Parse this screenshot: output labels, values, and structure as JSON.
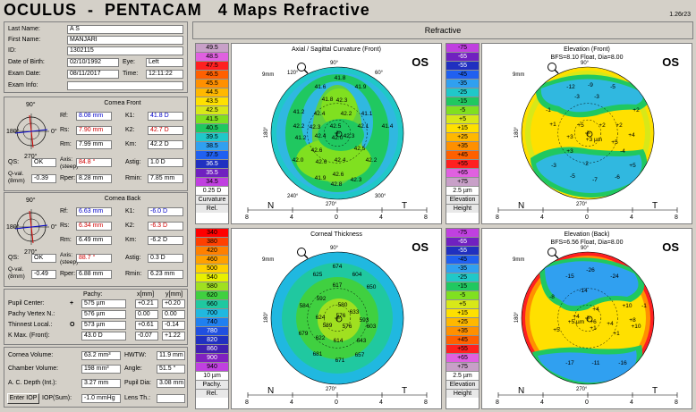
{
  "header": {
    "app": "OCULUS",
    "dash": "-",
    "product": "PENTACAM",
    "view": "4 Maps Refractive",
    "version": "1.26r23"
  },
  "mode_tab": "Refractive",
  "patient": {
    "last_name_label": "Last Name:",
    "last_name": "A S",
    "first_name_label": "First Name:",
    "first_name": "MANJARI",
    "id_label": "ID:",
    "id": "1302115",
    "dob_label": "Date of Birth:",
    "dob": "02/10/1992",
    "eye_label": "Eye:",
    "eye": "Left",
    "exam_date_label": "Exam Date:",
    "exam_date": "08/11/2017",
    "time_label": "Time:",
    "time": "12:11:22",
    "exam_info_label": "Exam Info:",
    "exam_info": ""
  },
  "front": {
    "title": "Cornea Front",
    "axis_top": "90°",
    "axis_left": "180°",
    "axis_right": "0°",
    "axis_bottom": "270°",
    "rf_label": "Rf:",
    "rf": "8.08 mm",
    "k1_label": "K1:",
    "k1": "41.8 D",
    "rs_label": "Rs:",
    "rs": "7.90 mm",
    "k2_label": "K2:",
    "k2": "42.7 D",
    "rm_label": "Rm:",
    "rm": "7.99 mm",
    "km_label": "Km:",
    "km": "42.2 D",
    "qs_label": "QS:",
    "qs": "OK",
    "axis_label": "Axis:\n(steep)",
    "axis": "84.8 °",
    "astig_label": "Astig:",
    "astig": "1.0 D",
    "qval_label": "Q-val.\n(8mm)",
    "qval": "-0.39",
    "rper_label": "Rper:",
    "rper": "8.28 mm",
    "rmin_label": "Rmin:",
    "rmin": "7.85 mm"
  },
  "back": {
    "title": "Cornea Back",
    "axis_top": "90°",
    "axis_left": "180°",
    "axis_right": "0°",
    "axis_bottom": "270°",
    "rf_label": "Rf:",
    "rf": "6.63 mm",
    "k1_label": "K1:",
    "k1": "-6.0 D",
    "rs_label": "Rs:",
    "rs": "6.34 mm",
    "k2_label": "K2:",
    "k2": "-6.3 D",
    "rm_label": "Rm:",
    "rm": "6.49 mm",
    "km_label": "Km:",
    "km": "-6.2 D",
    "qs_label": "QS:",
    "qs": "OK",
    "axis_label": "Axis:\n(steep)",
    "axis": "88.7 °",
    "astig_label": "Astig:",
    "astig": "0.3 D",
    "qval_label": "Q-val.\n(8mm)",
    "qval": "-0.49",
    "rper_label": "Rper:",
    "rper": "6.88 mm",
    "rmin_label": "Rmin:",
    "rmin": "6.23 mm"
  },
  "pachy": {
    "col_pachy": "Pachy:",
    "col_x": "x[mm]",
    "col_y": "y[mm]",
    "rows": [
      {
        "label": "Pupil Center:",
        "sym": "+",
        "pachy": "575 µm",
        "x": "+0.21",
        "y": "+0.20"
      },
      {
        "label": "Pachy Vertex N.:",
        "sym": "",
        "pachy": "576 µm",
        "x": "0.00",
        "y": "0.00"
      },
      {
        "label": "Thinnest Local.:",
        "sym": "O",
        "pachy": "573 µm",
        "x": "+0.61",
        "y": "-0.14"
      },
      {
        "label": "K Max. (Front):",
        "sym": "",
        "pachy": "43.0 D",
        "x": "-0.07",
        "y": "+1.22"
      }
    ]
  },
  "volumes": {
    "cv_label": "Cornea Volume:",
    "cv": "63.2 mm³",
    "hwtw_label": "HWTW:",
    "hwtw": "11.9 mm",
    "ch_label": "Chamber Volume:",
    "ch": "198 mm³",
    "angle_label": "Angle:",
    "angle": "51.5 °",
    "acd_label": "A. C. Depth (Int.):",
    "acd": "3.27 mm",
    "pupil_label": "Pupil Dia:",
    "pupil": "3.08 mm",
    "enter_iop": "Enter IOP",
    "iop_label": "IOP(Sum):",
    "iop": "-1.0 mmHg",
    "lens_label": "Lens Th.:",
    "lens": ""
  },
  "maps": {
    "curv": {
      "title": "Axial / Sagittal Curvature (Front)",
      "os": "OS",
      "scale": "9mm",
      "top": "90°",
      "bottom": "270°",
      "left": "180°",
      "br": "300°",
      "bl": "240°",
      "tl": "120°",
      "tr": "60°",
      "n": "N",
      "t": "T",
      "ticks": [
        "8",
        "4",
        "0",
        "4",
        "8"
      ],
      "legend": [
        "49.5",
        "48.5",
        "47.5",
        "46.5",
        "45.5",
        "44.5",
        "43.5",
        "42.5",
        "41.5",
        "40.5",
        "39.5",
        "38.5",
        "37.5",
        "36.5",
        "35.5",
        "34.5"
      ],
      "legend_colors": [
        "#c8a0c8",
        "#e060e0",
        "#ff2020",
        "#ff6000",
        "#ff9000",
        "#ffb800",
        "#ffe000",
        "#d8e818",
        "#80e020",
        "#20c860",
        "#20c8c8",
        "#30a0f0",
        "#2060f0",
        "#2030c0",
        "#7020c0",
        "#c040e0"
      ],
      "step": "0.25 D",
      "foot1": "Curvature",
      "foot2": "Rel.",
      "values": [
        "41.8",
        "41.6",
        "41.9",
        "41.8",
        "42.3",
        "41.2",
        "42.4",
        "42.2",
        "41.1",
        "42.2",
        "42.3",
        "42.5",
        "42.1",
        "41.4",
        "42.4",
        "42.3",
        "41.2",
        "42.0",
        "42.6",
        "42.5",
        "42.6",
        "42.4",
        "42.2",
        "42.0",
        "42.6",
        "41.9",
        "42.3",
        "42.8"
      ]
    },
    "elevf": {
      "title": "Elevation (Front)",
      "sub": "BFS=8.10 Float, Dia=8.00",
      "os": "OS",
      "scale": "9mm",
      "top": "90°",
      "bottom": "270°",
      "left": "180°",
      "n": "N",
      "t": "T",
      "ticks": [
        "8",
        "4",
        "0",
        "4",
        "8"
      ],
      "legend": [
        "-75",
        "-65",
        "-55",
        "-45",
        "-35",
        "-25",
        "-15",
        "-5",
        "+5",
        "+15",
        "+25",
        "+35",
        "+45",
        "+55",
        "+65",
        "+75"
      ],
      "legend_colors": [
        "#c040e0",
        "#7020c0",
        "#2030c0",
        "#2060f0",
        "#30a0f0",
        "#20c8c8",
        "#20c860",
        "#80e020",
        "#d8e818",
        "#ffe000",
        "#ffb800",
        "#ff9000",
        "#ff6000",
        "#ff2020",
        "#e060e0",
        "#c8a0c8"
      ],
      "step": "2.5 µm",
      "foot1": "Elevation",
      "foot2": "Height",
      "values": [
        "-9",
        "-12",
        "-5",
        "-3",
        "-3",
        "-1",
        "+2",
        "+1",
        "+5",
        "+2",
        "+2",
        "+3",
        "+4",
        "+3 µm",
        "+5",
        "+3",
        "-4",
        "-3",
        "-2",
        "+5",
        "-5",
        "-7",
        "-6"
      ]
    },
    "pachy": {
      "title": "Corneal Thickness",
      "os": "OS",
      "scale": "9mm",
      "top": "90°",
      "bottom": "270°",
      "left": "180°",
      "n": "N",
      "t": "T",
      "ticks": [
        "8",
        "4",
        "0",
        "4",
        "8"
      ],
      "legend": [
        "340",
        "380",
        "420",
        "460",
        "500",
        "540",
        "580",
        "620",
        "660",
        "700",
        "740",
        "780",
        "820",
        "860",
        "900",
        "940"
      ],
      "legend_colors": [
        "#ff0000",
        "#ff4000",
        "#ff8000",
        "#ffa000",
        "#ffd000",
        "#e8f000",
        "#a0e020",
        "#40d040",
        "#20c8a0",
        "#20b8e0",
        "#2080f0",
        "#2050e0",
        "#2030c0",
        "#4020b0",
        "#8020c0",
        "#c040e0"
      ],
      "step": "10 µm",
      "foot1": "Pachy.",
      "foot2": "Rel.",
      "values": [
        "674",
        "625",
        "604",
        "617",
        "650",
        "584",
        "592",
        "580",
        "633",
        "624",
        "576",
        "593",
        "589",
        "576",
        "603",
        "679",
        "622",
        "614",
        "643",
        "681",
        "671",
        "657"
      ]
    },
    "elevb": {
      "title": "Elevation (Back)",
      "sub": "BFS=6.56 Float, Dia=8.00",
      "os": "OS",
      "scale": "9mm",
      "top": "90°",
      "bottom": "270°",
      "left": "180°",
      "n": "N",
      "t": "T",
      "ticks": [
        "8",
        "4",
        "0",
        "4",
        "8"
      ],
      "legend": [
        "-75",
        "-65",
        "-55",
        "-45",
        "-35",
        "-25",
        "-15",
        "-5",
        "+5",
        "+15",
        "+25",
        "+35",
        "+45",
        "+55",
        "+65",
        "+75"
      ],
      "legend_colors": [
        "#c040e0",
        "#7020c0",
        "#2030c0",
        "#2060f0",
        "#30a0f0",
        "#20c8c8",
        "#20c860",
        "#80e020",
        "#d8e818",
        "#ffe000",
        "#ffb800",
        "#ff9000",
        "#ff6000",
        "#ff2020",
        "#e060e0",
        "#c8a0c8"
      ],
      "step": "2.5 µm",
      "foot1": "Elevation",
      "foot2": "Height",
      "values": [
        "-26",
        "-15",
        "-24",
        "-8",
        "-14",
        "-1",
        "+10",
        "+4",
        "+4",
        "+6",
        "+5 µm",
        "+4",
        "+8",
        "+1",
        "+1",
        "+10",
        "+5",
        "-17",
        "-11",
        "-16"
      ]
    }
  }
}
